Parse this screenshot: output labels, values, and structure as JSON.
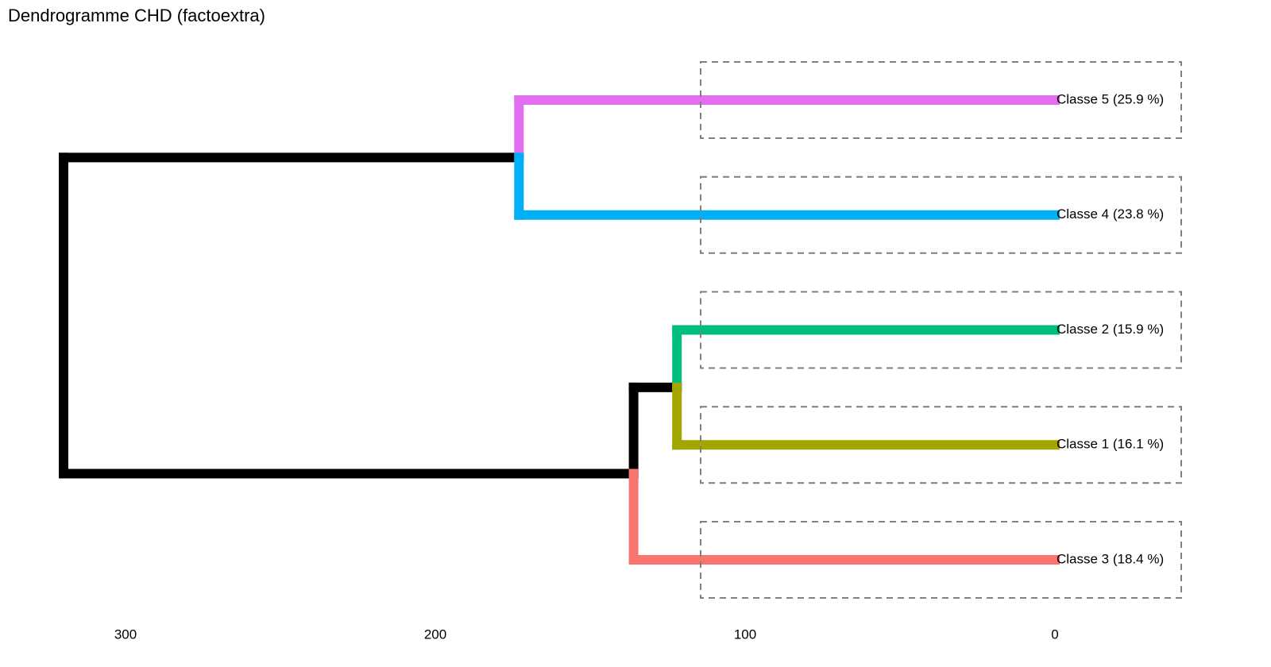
{
  "chart_data": {
    "type": "dendrogram",
    "title": "Dendrogramme CHD (factoextra)",
    "xlim": [
      330,
      -40
    ],
    "xticks": [
      300,
      200,
      100,
      0
    ],
    "link_color": "#000000",
    "tree": {
      "height": 320,
      "children": [
        {
          "height": 173,
          "children": [
            {
              "height": 0,
              "label": "Classe 5 (25.9 %)",
              "color": "#e36ef0"
            },
            {
              "height": 0,
              "label": "Classe 4 (23.8 %)",
              "color": "#00b0f6"
            }
          ]
        },
        {
          "height": 136,
          "children": [
            {
              "height": 122,
              "children": [
                {
                  "height": 0,
                  "label": "Classe 2 (15.9 %)",
                  "color": "#00bf7d"
                },
                {
                  "height": 0,
                  "label": "Classe 1 (16.1 %)",
                  "color": "#a3a500"
                }
              ]
            },
            {
              "height": 0,
              "label": "Classe 3 (18.4 %)",
              "color": "#f8766d"
            }
          ]
        }
      ]
    }
  }
}
